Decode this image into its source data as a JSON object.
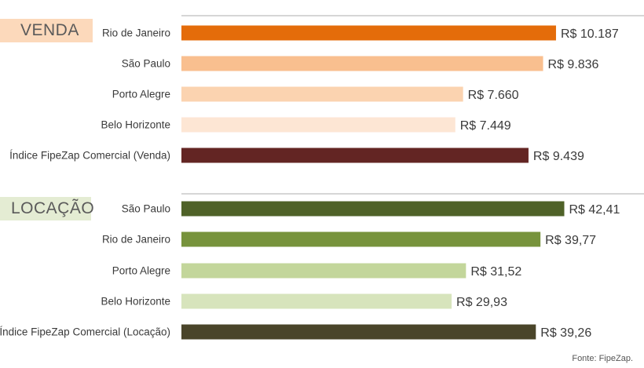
{
  "chart_data": [
    {
      "type": "bar",
      "orientation": "horizontal",
      "title": "VENDA",
      "categories": [
        "Rio de Janeiro",
        "São Paulo",
        "Porto Alegre",
        "Belo Horizonte",
        "Índice FipeZap Comercial (Venda)"
      ],
      "values": [
        10187,
        9836,
        7660,
        7449,
        9439
      ],
      "labels": [
        "R$ 10.187",
        "R$ 9.836",
        "R$ 7.660",
        "R$ 7.449",
        "R$ 9.439"
      ],
      "colors": [
        "#e46c0a",
        "#f9bf8f",
        "#fbd3b0",
        "#fde6d4",
        "#632523"
      ],
      "xlim": [
        0,
        12580
      ]
    },
    {
      "type": "bar",
      "orientation": "horizontal",
      "title": "LOCAÇÃO",
      "categories": [
        "São Paulo",
        "Rio de Janeiro",
        "Porto Alegre",
        "Belo Horizonte",
        "Índice FipeZap Comercial (Locação)"
      ],
      "values": [
        42.41,
        39.77,
        31.52,
        29.93,
        39.26
      ],
      "labels": [
        "R$ 42,41",
        "R$ 39,77",
        "R$ 31,52",
        "R$ 29,93",
        "R$ 39,26"
      ],
      "colors": [
        "#4f6228",
        "#77933c",
        "#c3d69b",
        "#d7e4bc",
        "#4a452a"
      ],
      "xlim": [
        0,
        51.24
      ]
    }
  ],
  "source": "Fonte: FipeZap."
}
